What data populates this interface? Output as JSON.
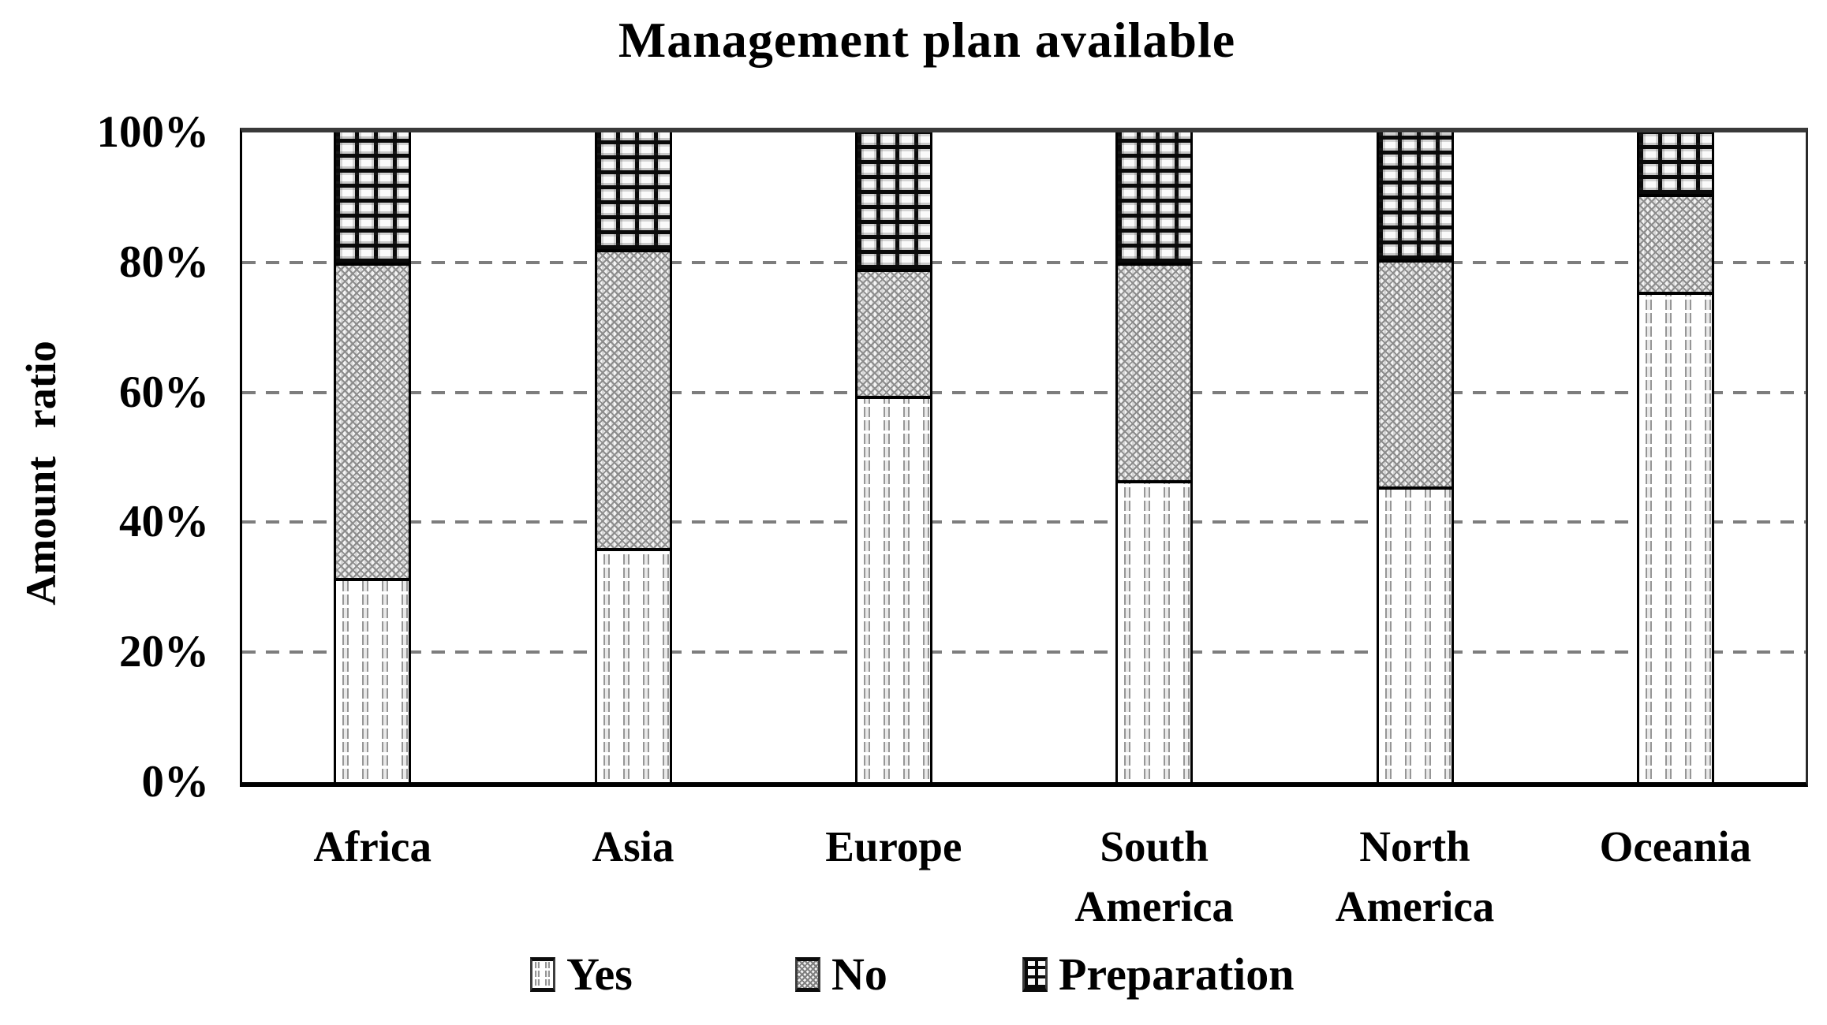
{
  "chart_data": {
    "type": "bar",
    "stacked": true,
    "title": "Management plan available",
    "ylabel": "Amount  ratio",
    "xlabel": "",
    "ylim": [
      0,
      100
    ],
    "y_ticks": [
      "0%",
      "20%",
      "40%",
      "60%",
      "80%",
      "100%"
    ],
    "grid": "horizontal dashed gridlines at 20%, 40%, 60%, 80%",
    "legend_position": "bottom",
    "categories": [
      "Africa",
      "Asia",
      "Europe",
      "South America",
      "North America",
      "Oceania"
    ],
    "category_label_lines": [
      [
        "Africa"
      ],
      [
        "Asia"
      ],
      [
        "Europe"
      ],
      [
        "South",
        "America"
      ],
      [
        "North",
        "America"
      ],
      [
        "Oceania"
      ]
    ],
    "series": [
      {
        "name": "Yes",
        "pattern": "vertical-dashed-lines",
        "values": [
          31,
          35.5,
          59,
          46,
          45,
          75
        ]
      },
      {
        "name": "No",
        "pattern": "diagonal-crosshatch",
        "values": [
          48.5,
          46,
          19.5,
          33.5,
          35,
          15
        ]
      },
      {
        "name": "Preparation",
        "pattern": "bold-grid",
        "values": [
          20.5,
          18.5,
          21.5,
          20.5,
          20,
          10
        ]
      }
    ],
    "colors": {
      "background": "#ffffff",
      "axis": "#000000",
      "grid": "#7d7d7d",
      "pattern_ink": "#8c8c8c",
      "text": "#000000"
    }
  }
}
